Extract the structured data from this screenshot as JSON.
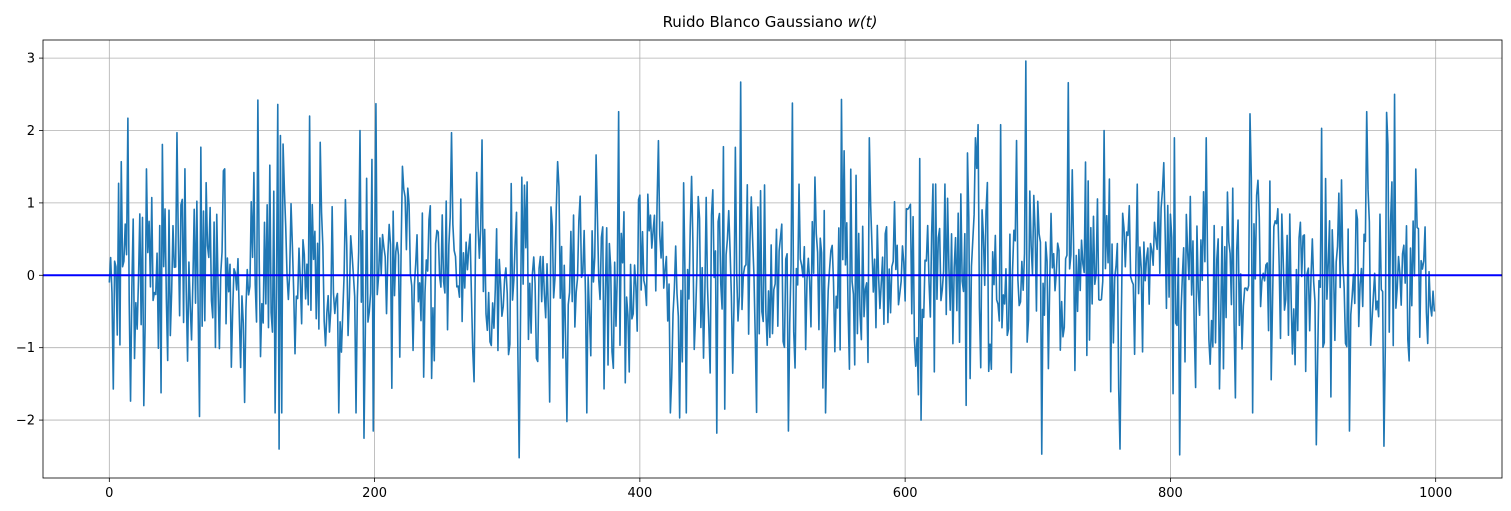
{
  "chart_data": {
    "type": "line",
    "title": "Ruido Blanco Gaussiano ",
    "title_math": "w(t)",
    "xlabel": "",
    "ylabel": "",
    "xlim": [
      -50,
      1050
    ],
    "ylim": [
      -2.8,
      3.25
    ],
    "x_ticks": [
      0,
      200,
      400,
      600,
      800,
      1000
    ],
    "y_ticks": [
      -2,
      -1,
      0,
      1,
      2,
      3
    ],
    "x_tick_labels": [
      "0",
      "200",
      "400",
      "600",
      "800",
      "1000"
    ],
    "y_tick_labels": [
      "−2",
      "−1",
      "0",
      "1",
      "2",
      "3"
    ],
    "grid": true,
    "legend": "none",
    "series": [
      {
        "color": "#1f77b4",
        "x_start": 0,
        "x_step": 1,
        "n_points": 1000,
        "anchors": [
          [
            0,
            -0.1
          ],
          [
            3,
            -1.57
          ],
          [
            7,
            1.27
          ],
          [
            9,
            1.57
          ],
          [
            14,
            2.17
          ],
          [
            26,
            -1.8
          ],
          [
            28,
            1.47
          ],
          [
            51,
            1.97
          ],
          [
            68,
            -1.95
          ],
          [
            69,
            1.77
          ],
          [
            87,
            1.47
          ],
          [
            112,
            2.42
          ],
          [
            127,
            2.36
          ],
          [
            128,
            -2.4
          ],
          [
            129,
            1.93
          ],
          [
            130,
            -1.9
          ],
          [
            151,
            2.2
          ],
          [
            189,
            2.0
          ],
          [
            192,
            -2.25
          ],
          [
            199,
            -2.15
          ],
          [
            201,
            2.37
          ],
          [
            258,
            1.97
          ],
          [
            281,
            1.87
          ],
          [
            309,
            -2.52
          ],
          [
            338,
            1.57
          ],
          [
            345,
            -2.02
          ],
          [
            384,
            2.26
          ],
          [
            430,
            -1.97
          ],
          [
            435,
            -1.9
          ],
          [
            458,
            -2.18
          ],
          [
            476,
            2.67
          ],
          [
            512,
            -2.15
          ],
          [
            515,
            2.38
          ],
          [
            552,
            2.43
          ],
          [
            612,
            -2.0
          ],
          [
            655,
            2.08
          ],
          [
            672,
            2.08
          ],
          [
            691,
            2.96
          ],
          [
            703,
            -2.47
          ],
          [
            723,
            2.66
          ],
          [
            750,
            2.0
          ],
          [
            762,
            -2.4
          ],
          [
            807,
            -2.48
          ],
          [
            860,
            2.23
          ],
          [
            910,
            -2.34
          ],
          [
            914,
            2.03
          ],
          [
            935,
            -2.15
          ],
          [
            948,
            2.26
          ],
          [
            961,
            -2.36
          ],
          [
            963,
            2.25
          ],
          [
            969,
            2.5
          ],
          [
            999,
            -0.5
          ]
        ],
        "sigma": 0.78
      },
      {
        "color": "#0000ff",
        "type": "hline",
        "y": 0
      }
    ]
  }
}
